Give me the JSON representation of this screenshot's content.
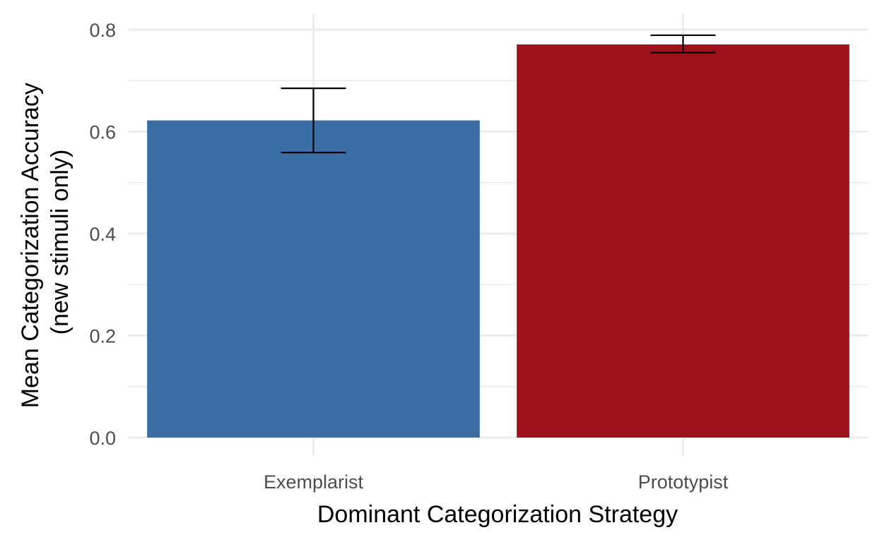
{
  "chart_data": {
    "type": "bar",
    "categories": [
      "Exemplarist",
      "Prototypist"
    ],
    "values": [
      0.622,
      0.771
    ],
    "error_low": [
      0.559,
      0.755
    ],
    "error_high": [
      0.685,
      0.789
    ],
    "colors": [
      "#3a6ea5",
      "#a0121b"
    ],
    "xlabel": "Dominant Categorization Strategy",
    "ylabel_lines": [
      "Mean Categorization Accuracy",
      "(new stimuli only)"
    ],
    "ylim": [
      0,
      0.8
    ],
    "yticks": [
      0.0,
      0.2,
      0.4,
      0.6,
      0.8
    ],
    "ytick_labels": [
      "0.0",
      "0.2",
      "0.4",
      "0.6",
      "0.8"
    ],
    "grid": true
  }
}
